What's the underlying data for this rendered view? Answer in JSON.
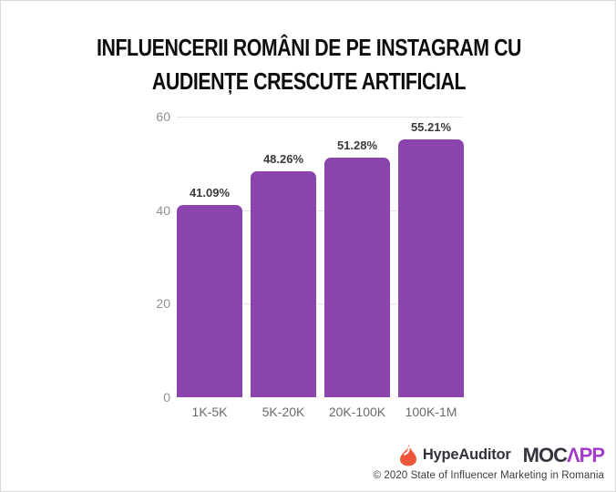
{
  "title": {
    "line1": "INFLUENCERII ROMÂNI DE PE INSTAGRAM CU",
    "line2": "AUDIENȚE CRESCUTE ARTIFICIAL"
  },
  "chart_data": {
    "type": "bar",
    "title": "Influencerii români de pe Instagram cu audiențe crescute artificial",
    "categories": [
      "1K-5K",
      "5K-20K",
      "20K-100K",
      "100K-1M"
    ],
    "values": [
      41.09,
      48.26,
      51.28,
      55.21
    ],
    "value_labels": [
      "41.09%",
      "48.26%",
      "51.28%",
      "55.21%"
    ],
    "unit": "%",
    "xlabel": "",
    "ylabel": "",
    "y_ticks": [
      0,
      20,
      40,
      60
    ],
    "ylim": [
      0,
      60
    ],
    "grid": "horizontal",
    "legend": "none",
    "bar_color": "#8b44ad"
  },
  "footer": {
    "hypeauditor_label": "HypeAuditor",
    "mocapp_dark": "MOC",
    "mocapp_accent": "ΛPP",
    "copyright": "© 2020 State of Influencer Marketing in Romania"
  },
  "colors": {
    "bar": "#8b44ad",
    "grid": "#e4e4e4",
    "y_axis_label": "#8f8f8f",
    "x_axis_label": "#6a6a6a",
    "value_label": "#3a3a3a",
    "title_text": "#0d0d0d",
    "flame": "#f0563a",
    "mocapp_purple": "#a33bcb"
  }
}
